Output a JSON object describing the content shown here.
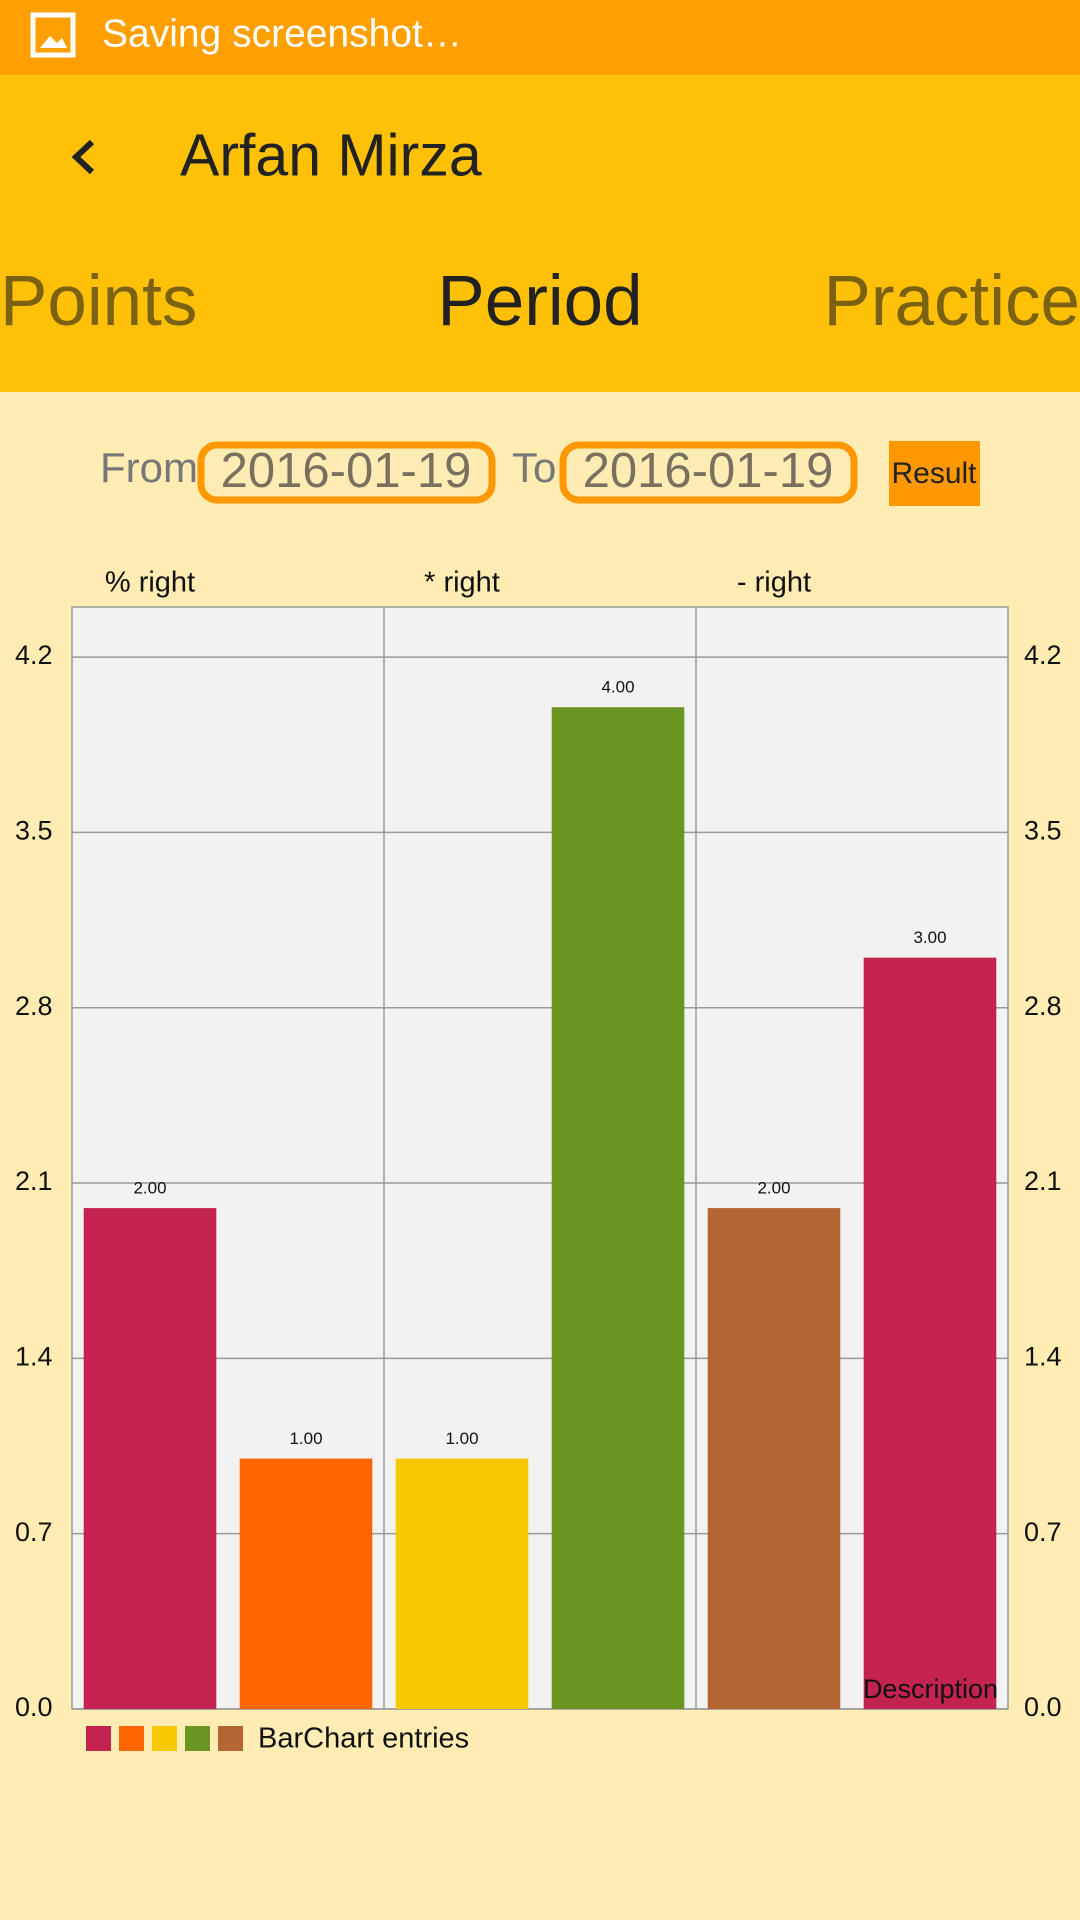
{
  "status_bar": {
    "text": "Saving screenshot…"
  },
  "app_bar": {
    "title": "Arfan Mirza"
  },
  "tabs": [
    "Points",
    "Period",
    "Practice"
  ],
  "filter": {
    "from_label": "From",
    "from_date": "2016-01-19",
    "to_label": "To",
    "to_date": "2016-01-19",
    "button": "Result"
  },
  "chart_data": {
    "type": "bar",
    "categories": [
      "% right",
      null,
      "* right",
      null,
      "- right",
      null
    ],
    "series": [
      {
        "name": "BarChart entries",
        "colors": [
          "#c2244f",
          "#ff6600",
          "#f5c800",
          "#6a9520",
          "#b36633"
        ],
        "values": [
          2,
          1,
          1,
          4,
          2,
          3
        ],
        "value_labels": [
          "2.00",
          "1.00",
          "1.00",
          "4.00",
          "2.00",
          "3.00"
        ]
      }
    ],
    "ylim": [
      0,
      4.4
    ],
    "yticks": [
      {
        "value": 0,
        "label": "0.0"
      },
      0.7,
      1.4,
      2.1,
      2.8,
      3.5,
      4.2
    ],
    "grid": true,
    "right_axis": true,
    "legend": "bottom-left",
    "description": "Description"
  }
}
